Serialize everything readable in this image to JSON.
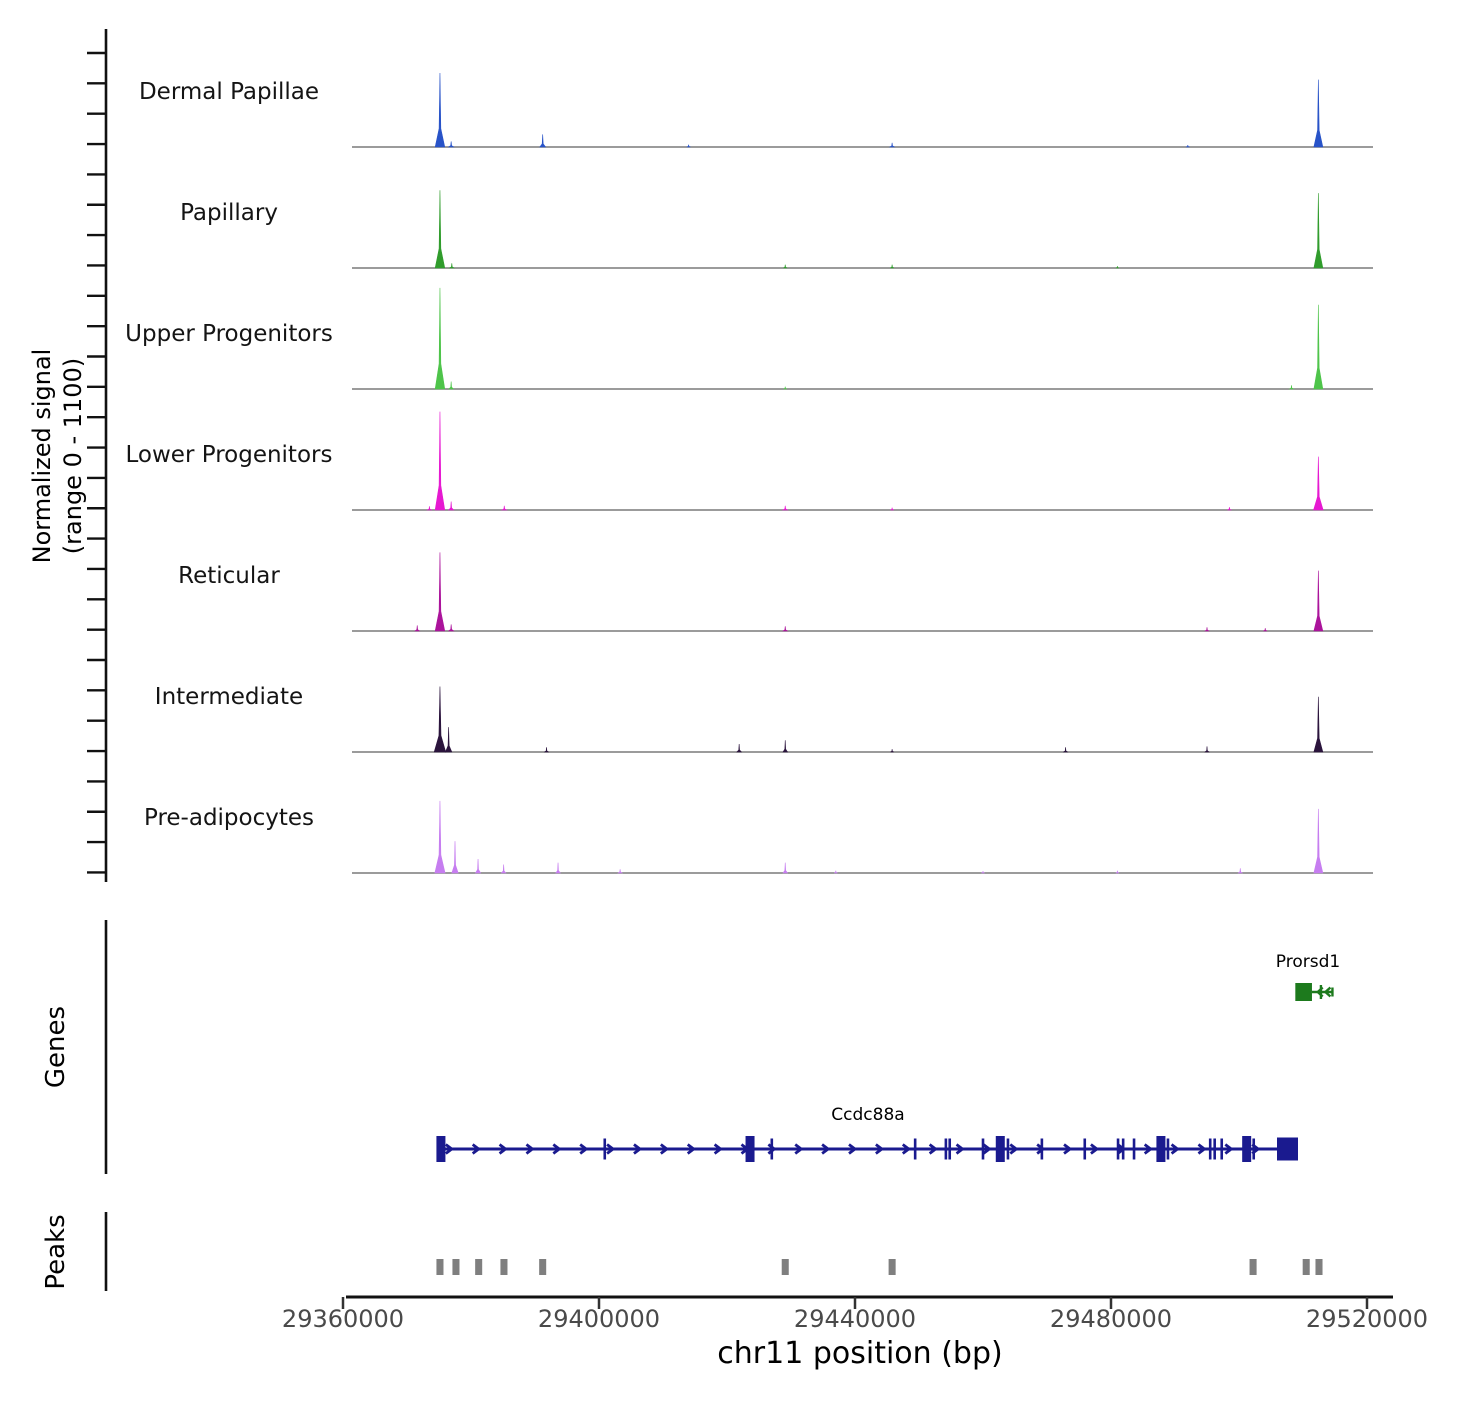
{
  "figure": {
    "y_axis_label_line1": "Normalized signal",
    "y_axis_label_line2": "(range 0 - 1100)",
    "x_axis_title": "chr11 position (bp)",
    "genes_section_label": "Genes",
    "peaks_section_label": "Peaks"
  },
  "x_axis": {
    "tick_labels": [
      "29360000",
      "29400000",
      "29440000",
      "29480000",
      "29520000"
    ],
    "tick_bp": [
      29360000,
      29400000,
      29440000,
      29480000,
      29520000
    ]
  },
  "chart_data": {
    "type": "area",
    "title": "",
    "xlabel": "chr11 position (bp)",
    "ylabel": "Normalized signal (range 0 - 1100)",
    "chromosome": "chr11",
    "x_range_bp": [
      29361400,
      29521000
    ],
    "ylim": [
      0,
      1100
    ],
    "grid": false,
    "tracks": [
      {
        "name": "Dermal Papillae",
        "color": "#2853c8",
        "peaks": [
          [
            29375150,
            790,
            1500
          ],
          [
            29376900,
            60,
            800
          ],
          [
            29391200,
            135,
            900
          ],
          [
            29414000,
            25,
            600
          ],
          [
            29445800,
            45,
            700
          ],
          [
            29492000,
            20,
            600
          ],
          [
            29512400,
            720,
            1400
          ]
        ]
      },
      {
        "name": "Papillary",
        "color": "#309c2c",
        "peaks": [
          [
            29375150,
            830,
            1500
          ],
          [
            29377000,
            50,
            700
          ],
          [
            29429100,
            35,
            600
          ],
          [
            29445800,
            35,
            600
          ],
          [
            29481000,
            20,
            500
          ],
          [
            29512400,
            800,
            1400
          ]
        ]
      },
      {
        "name": "Upper Progenitors",
        "color": "#4ec44a",
        "peaks": [
          [
            29375150,
            1080,
            1500
          ],
          [
            29376900,
            80,
            700
          ],
          [
            29429100,
            25,
            500
          ],
          [
            29508200,
            40,
            600
          ],
          [
            29512400,
            900,
            1400
          ]
        ]
      },
      {
        "name": "Lower Progenitors",
        "color": "#e619d1",
        "peaks": [
          [
            29373500,
            40,
            600
          ],
          [
            29375150,
            1050,
            1500
          ],
          [
            29376900,
            90,
            800
          ],
          [
            29385200,
            45,
            700
          ],
          [
            29429100,
            45,
            700
          ],
          [
            29445800,
            25,
            500
          ],
          [
            29498500,
            30,
            600
          ],
          [
            29512400,
            570,
            1500
          ]
        ]
      },
      {
        "name": "Reticular",
        "color": "#ab139b",
        "peaks": [
          [
            29371600,
            60,
            700
          ],
          [
            29375150,
            840,
            1500
          ],
          [
            29376900,
            70,
            800
          ],
          [
            29429100,
            50,
            700
          ],
          [
            29495000,
            40,
            600
          ],
          [
            29504100,
            30,
            600
          ],
          [
            29512400,
            645,
            1400
          ]
        ]
      },
      {
        "name": "Intermediate",
        "color": "#2b143d",
        "peaks": [
          [
            29375150,
            700,
            1800
          ],
          [
            29376500,
            265,
            1000
          ],
          [
            29391800,
            50,
            600
          ],
          [
            29421900,
            85,
            700
          ],
          [
            29429100,
            125,
            700
          ],
          [
            29445800,
            30,
            500
          ],
          [
            29472900,
            50,
            600
          ],
          [
            29495000,
            60,
            600
          ],
          [
            29512400,
            590,
            1400
          ]
        ]
      },
      {
        "name": "Pre-adipocytes",
        "color": "#c67df0",
        "peaks": [
          [
            29375150,
            770,
            1600
          ],
          [
            29377500,
            340,
            1000
          ],
          [
            29381100,
            150,
            800
          ],
          [
            29385100,
            90,
            700
          ],
          [
            29393600,
            110,
            700
          ],
          [
            29403300,
            40,
            600
          ],
          [
            29429100,
            110,
            700
          ],
          [
            29437000,
            25,
            500
          ],
          [
            29460000,
            20,
            500
          ],
          [
            29481000,
            25,
            500
          ],
          [
            29500200,
            50,
            600
          ],
          [
            29512400,
            685,
            1400
          ]
        ]
      }
    ],
    "genes": [
      {
        "name": "Prorsd1",
        "color": "#1d7a1d",
        "strand": "-",
        "start_bp": 29508800,
        "end_bp": 29514600,
        "box_bp": [
          29508800,
          29511400
        ],
        "ticks_bp": [
          29512800,
          29514600
        ],
        "arrows_bp": [
          29512300,
          29513500
        ]
      },
      {
        "name": "Ccdc88a",
        "color": "#1a1a8f",
        "strand": "+",
        "start_bp": 29374700,
        "end_bp": 29508200,
        "arrow_start_bp": 29377000,
        "arrow_step_bp": 4200,
        "exons": [
          [
            29375300,
            2
          ],
          [
            29400900,
            1
          ],
          [
            29423600,
            2
          ],
          [
            29427000,
            1
          ],
          [
            29449400,
            1
          ],
          [
            29454200,
            1
          ],
          [
            29454800,
            1
          ],
          [
            29460000,
            1
          ],
          [
            29462700,
            2
          ],
          [
            29463900,
            1
          ],
          [
            29469200,
            1
          ],
          [
            29475900,
            1
          ],
          [
            29481100,
            1
          ],
          [
            29481900,
            1
          ],
          [
            29483600,
            1
          ],
          [
            29487800,
            2
          ],
          [
            29488900,
            1
          ],
          [
            29495500,
            1
          ],
          [
            29496200,
            1
          ],
          [
            29497300,
            1
          ],
          [
            29501200,
            2
          ],
          [
            29502300,
            1
          ],
          [
            29507500,
            3
          ]
        ]
      }
    ],
    "peak_regions": {
      "color": "#7f7f7f",
      "width_bp": 1100,
      "centers_bp": [
        29375150,
        29377650,
        29381200,
        29385150,
        29391200,
        29429100,
        29445800,
        29502200,
        29510500,
        29512500
      ]
    }
  }
}
